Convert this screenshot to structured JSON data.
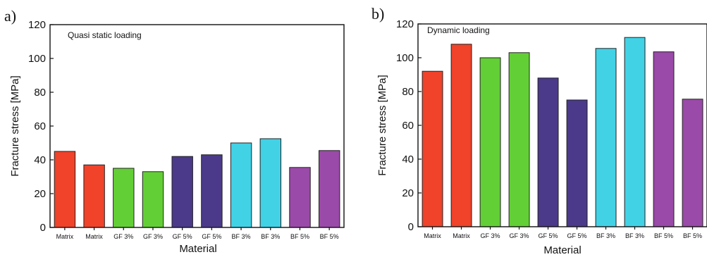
{
  "chart_data": [
    {
      "type": "bar",
      "panel_label": "a)",
      "annotation": "Quasi static loading",
      "categories": [
        "Matrix",
        "Matrix",
        "GF 3%",
        "GF 3%",
        "GF 5%",
        "GF 5%",
        "BF 3%",
        "BF 3%",
        "BF 5%",
        "BF 5%"
      ],
      "values": [
        45,
        37,
        35,
        33,
        42,
        43,
        50,
        52.5,
        35.5,
        45.5
      ],
      "bar_colors": [
        "#f0432a",
        "#f0432a",
        "#63cf36",
        "#63cf36",
        "#4b3a8a",
        "#4b3a8a",
        "#42d2e6",
        "#42d2e6",
        "#9a4aa8",
        "#9a4aa8"
      ],
      "xlabel": "Material",
      "ylabel": "Fracture stress [MPa]",
      "ylim": [
        0,
        120
      ],
      "yticks": [
        "0",
        "20",
        "40",
        "60",
        "80",
        "100",
        "120"
      ],
      "grid": false
    },
    {
      "type": "bar",
      "panel_label": "b)",
      "annotation": "Dynamic loading",
      "categories": [
        "Matrix",
        "Matrix",
        "GF 3%",
        "GF 3%",
        "GF 5%",
        "GF 5%",
        "BF 3%",
        "BF 3%",
        "BF 5%",
        "BF 5%"
      ],
      "values": [
        92,
        108,
        100,
        103,
        88,
        75,
        105.5,
        112,
        103.5,
        75.5
      ],
      "bar_colors": [
        "#f0432a",
        "#f0432a",
        "#63cf36",
        "#63cf36",
        "#4b3a8a",
        "#4b3a8a",
        "#42d2e6",
        "#42d2e6",
        "#9a4aa8",
        "#9a4aa8"
      ],
      "xlabel": "Material",
      "ylabel": "Fracture stress [MPa]",
      "ylim": [
        0,
        120
      ],
      "yticks": [
        "0",
        "20",
        "40",
        "60",
        "80",
        "100",
        "120"
      ],
      "grid": false
    }
  ]
}
